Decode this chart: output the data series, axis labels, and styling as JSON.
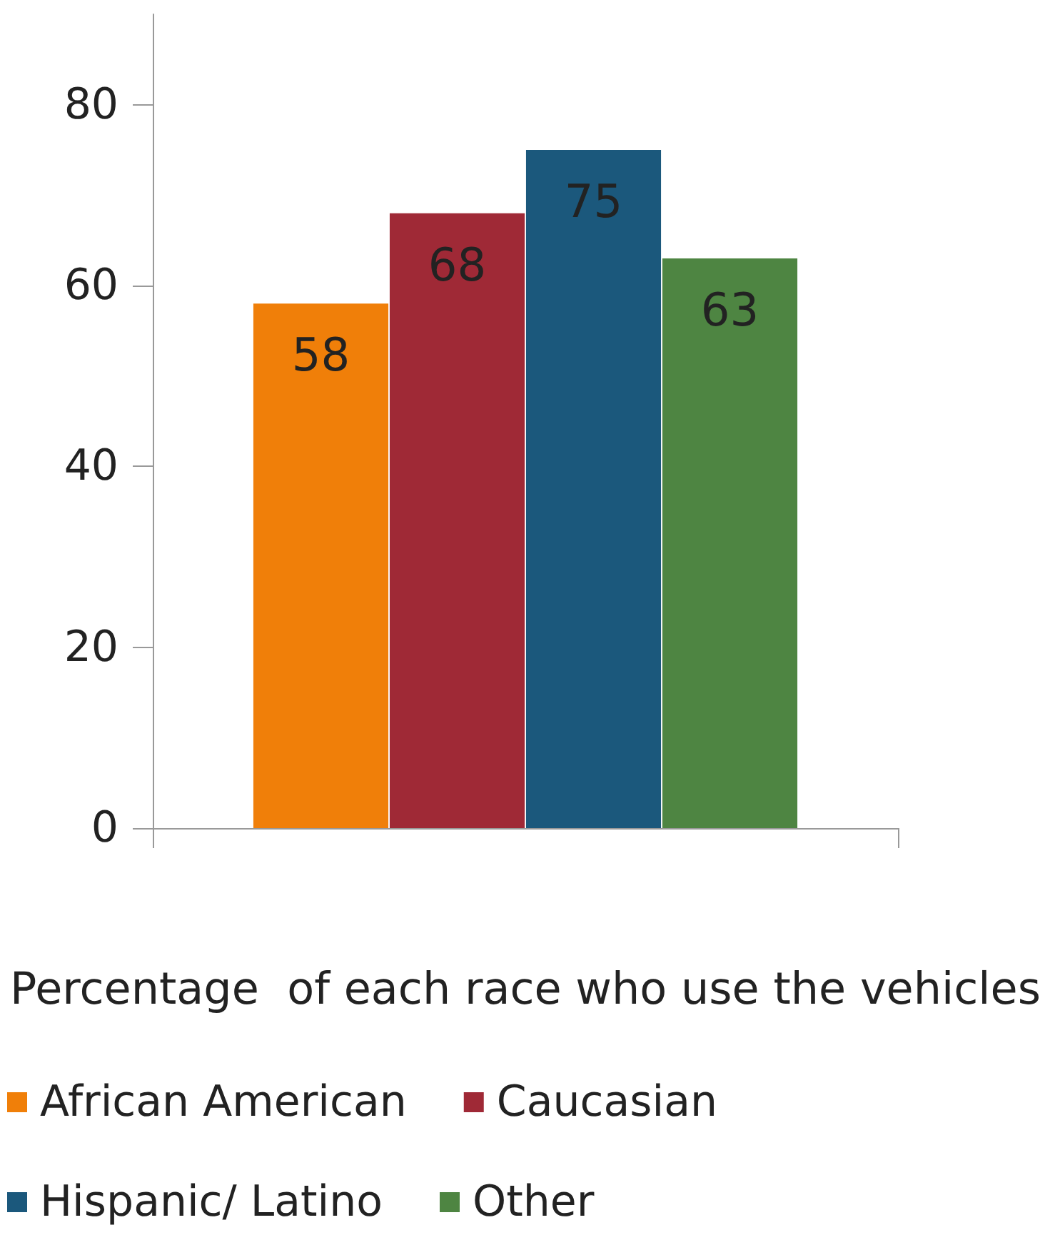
{
  "chart_data": {
    "type": "bar",
    "categories": [
      null
    ],
    "xlabel": "Percentage  of each race who use the vehicles",
    "series": [
      {
        "name": "African American",
        "color": "#f07f09",
        "values": [
          58
        ]
      },
      {
        "name": "Caucasian",
        "color": "#9f2936",
        "values": [
          68
        ]
      },
      {
        "name": "Hispanic/ Latino",
        "color": "#1b587c",
        "values": [
          75
        ]
      },
      {
        "name": "Other",
        "color": "#4e8542",
        "values": [
          63
        ]
      }
    ],
    "ylim": [
      0,
      90
    ],
    "yticks": [
      0,
      20,
      40,
      60,
      80
    ],
    "grid": false,
    "legend": "bottom",
    "data_labels": true
  }
}
